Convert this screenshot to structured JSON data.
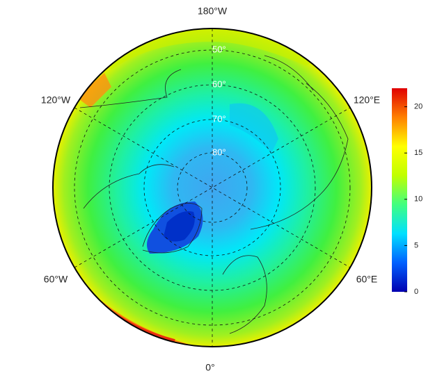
{
  "map": {
    "lon_labels": [
      "180°W",
      "120°E",
      "60°E",
      "0°",
      "60°W",
      "120°W"
    ],
    "lat_labels": [
      "50°",
      "60°",
      "70°",
      "80°"
    ],
    "colorbar": {
      "range": [
        0,
        22
      ],
      "ticks": [
        0,
        5,
        10,
        15,
        20
      ],
      "colors": [
        "#0000b0",
        "#0060ff",
        "#00e0ff",
        "#40ff80",
        "#c0ff00",
        "#ffff00",
        "#ff8000",
        "#e00000"
      ]
    }
  }
}
